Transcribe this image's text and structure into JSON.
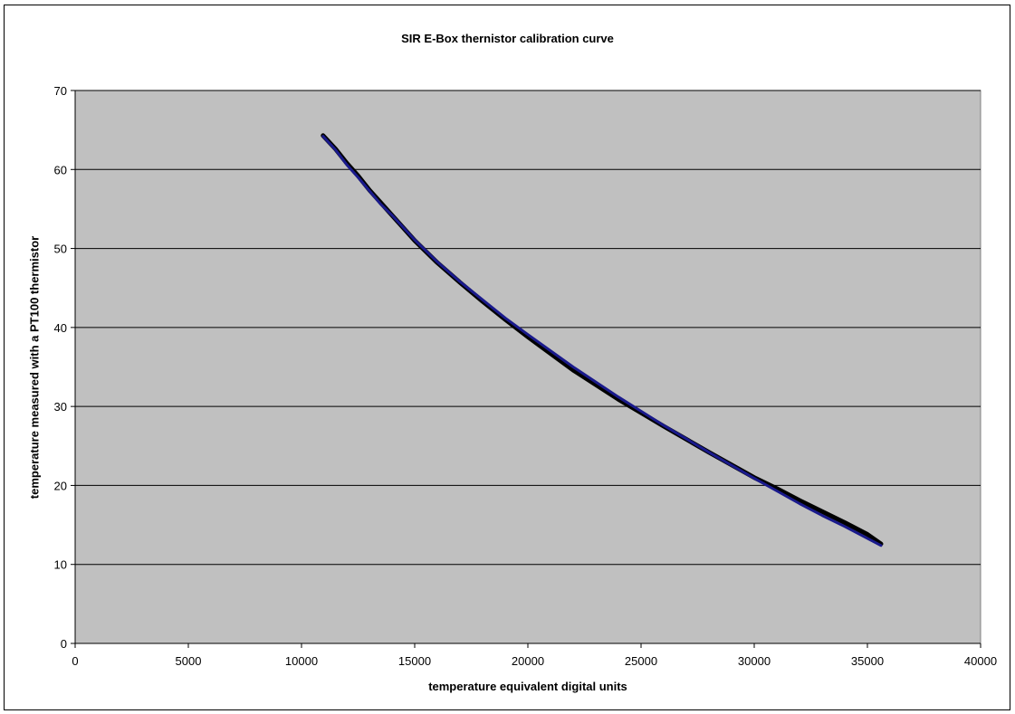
{
  "chart_data": {
    "type": "line",
    "title": "SIR E-Box thernistor calibration curve",
    "xlabel": "temperature equivalent digital units",
    "ylabel": "temperature measured with a PT100 thermistor",
    "xlim": [
      0,
      40000
    ],
    "ylim": [
      0,
      70
    ],
    "xticks": [
      "0",
      "5000",
      "10000",
      "15000",
      "20000",
      "25000",
      "30000",
      "35000",
      "40000"
    ],
    "yticks": [
      "0",
      "10",
      "20",
      "30",
      "40",
      "50",
      "60",
      "70"
    ],
    "grid": "horizontal",
    "legend": "none",
    "plot_background": "#c0c0c0",
    "series": [
      {
        "color": "#000000",
        "x": [
          10950,
          11500,
          12000,
          12500,
          13000,
          13500,
          14000,
          15000,
          16000,
          17000,
          18000,
          19000,
          20000,
          22000,
          24000,
          25000,
          26000,
          28000,
          30000,
          31000,
          32000,
          33000,
          34000,
          35000,
          35600
        ],
        "y": [
          64.3,
          62.6,
          60.8,
          59.2,
          57.4,
          55.8,
          54.2,
          51.0,
          48.2,
          45.7,
          43.3,
          41.0,
          38.8,
          34.6,
          30.9,
          29.2,
          27.5,
          24.2,
          21.0,
          19.6,
          18.1,
          16.7,
          15.3,
          13.8,
          12.6
        ]
      },
      {
        "color": "#1a1a8c",
        "x": [
          10950,
          11500,
          12000,
          12500,
          13000,
          13500,
          14000,
          15000,
          16000,
          17000,
          18000,
          19000,
          20000,
          22000,
          24000,
          25000,
          26000,
          28000,
          30000,
          31000,
          32000,
          33000,
          34000,
          35000,
          35600
        ],
        "y": [
          64.2,
          62.5,
          60.6,
          59.0,
          57.3,
          55.6,
          54.2,
          51.1,
          48.3,
          45.8,
          43.5,
          41.2,
          39.1,
          35.0,
          31.2,
          29.4,
          27.6,
          24.2,
          20.9,
          19.3,
          17.7,
          16.2,
          14.8,
          13.3,
          12.4
        ]
      }
    ]
  }
}
